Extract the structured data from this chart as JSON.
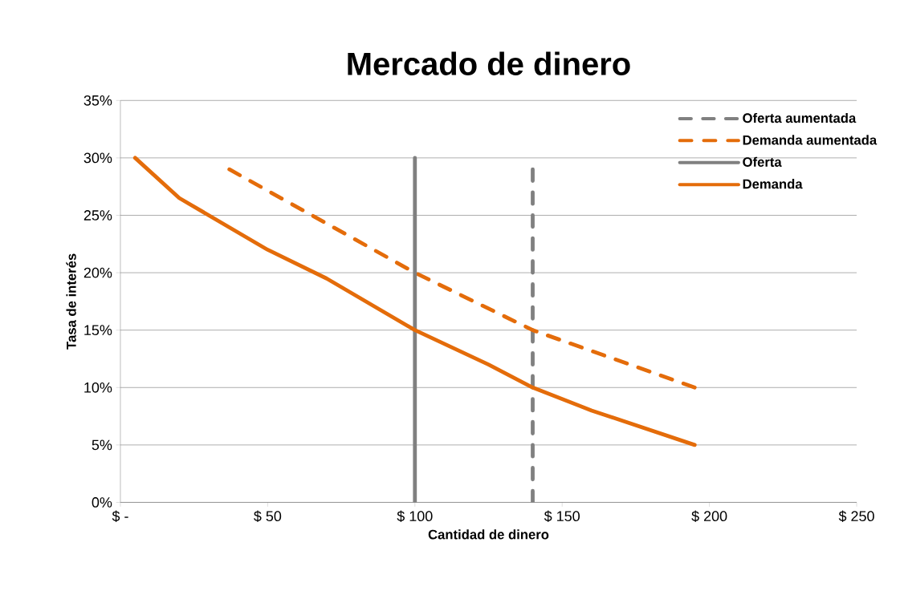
{
  "chart_data": {
    "type": "line",
    "title": "Mercado de dinero",
    "xlabel": "Cantidad de dinero",
    "ylabel": "Tasa de interés",
    "xlim": [
      0,
      250
    ],
    "ylim": [
      0,
      35
    ],
    "xticks": [
      {
        "value": 0,
        "label": "$ -"
      },
      {
        "value": 50,
        "label": "$ 50"
      },
      {
        "value": 100,
        "label": "$ 100"
      },
      {
        "value": 150,
        "label": "$ 150"
      },
      {
        "value": 200,
        "label": "$ 200"
      },
      {
        "value": 250,
        "label": "$ 250"
      }
    ],
    "yticks": [
      {
        "value": 0,
        "label": "0%"
      },
      {
        "value": 5,
        "label": "5%"
      },
      {
        "value": 10,
        "label": "10%"
      },
      {
        "value": 15,
        "label": "15%"
      },
      {
        "value": 20,
        "label": "20%"
      },
      {
        "value": 25,
        "label": "25%"
      },
      {
        "value": 30,
        "label": "30%"
      },
      {
        "value": 35,
        "label": "35%"
      }
    ],
    "grid": "y",
    "legend": "top right",
    "series": [
      {
        "name": "Oferta aumentada",
        "color": "#808080",
        "line_style": "dashed",
        "x": [
          140,
          140
        ],
        "values": [
          0,
          29
        ]
      },
      {
        "name": "Demanda aumentada",
        "color": "#e46c0a",
        "line_style": "dashed",
        "x": [
          37,
          100,
          140,
          195
        ],
        "values": [
          29,
          20,
          15,
          10
        ]
      },
      {
        "name": "Oferta",
        "color": "#808080",
        "line_style": "solid",
        "x": [
          100,
          100
        ],
        "values": [
          0,
          30
        ]
      },
      {
        "name": "Demanda",
        "color": "#e46c0a",
        "line_style": "solid",
        "x": [
          5,
          20,
          30,
          50,
          70,
          100,
          125,
          140,
          160,
          195
        ],
        "values": [
          30,
          26.5,
          25,
          22,
          19.5,
          15,
          12,
          10,
          8,
          5
        ]
      }
    ]
  }
}
